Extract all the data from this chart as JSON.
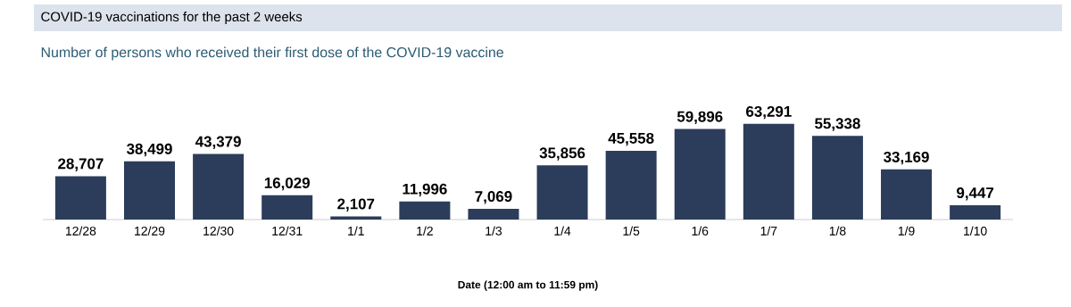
{
  "chart_data": {
    "type": "bar",
    "title": "COVID-19 vaccinations for the past 2 weeks",
    "subtitle": "Number of persons who received their first dose of the COVID-19 vaccine",
    "xlabel": "Date (12:00 am to 11:59 pm)",
    "categories": [
      "12/28",
      "12/29",
      "12/30",
      "12/31",
      "1/1",
      "1/2",
      "1/3",
      "1/4",
      "1/5",
      "1/6",
      "1/7",
      "1/8",
      "1/9",
      "1/10"
    ],
    "values": [
      28707,
      38499,
      43379,
      16029,
      2107,
      11996,
      7069,
      35856,
      45558,
      59896,
      63291,
      55338,
      33169,
      9447
    ],
    "value_labels": [
      "28,707",
      "38,499",
      "43,379",
      "16,029",
      "2,107",
      "11,996",
      "7,069",
      "35,856",
      "45,558",
      "59,896",
      "63,291",
      "55,338",
      "33,169",
      "9,447"
    ],
    "color": "#2b3d5a"
  }
}
